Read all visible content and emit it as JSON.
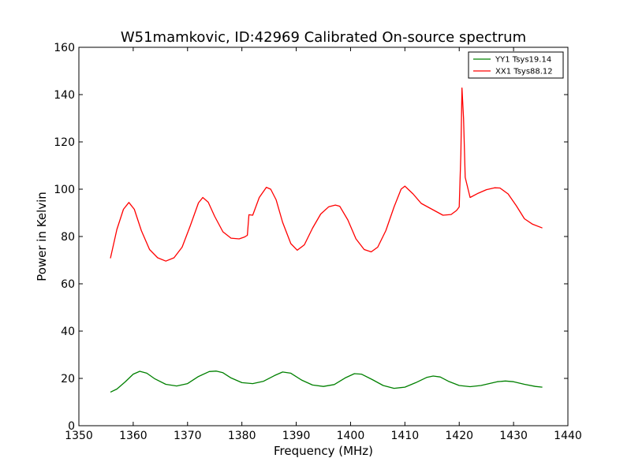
{
  "chart_data": {
    "type": "line",
    "title": "W51mamkovic, ID:42969 Calibrated On-source spectrum",
    "xlabel": "Frequency (MHz)",
    "ylabel": "Power in Kelvin",
    "xlim": [
      1350,
      1440
    ],
    "ylim": [
      0,
      160
    ],
    "xticks": [
      1350,
      1360,
      1370,
      1380,
      1390,
      1400,
      1410,
      1420,
      1430,
      1440
    ],
    "yticks": [
      0,
      20,
      40,
      60,
      80,
      100,
      120,
      140,
      160
    ],
    "grid": false,
    "legend_position": "top-right",
    "series": [
      {
        "name": "YY1 Tsys19.14",
        "color": "#008000",
        "x": [
          1355.8,
          1357,
          1358.5,
          1360,
          1361.2,
          1362.5,
          1364,
          1366,
          1368,
          1370,
          1372,
          1374,
          1375.3,
          1376.5,
          1378,
          1380,
          1382,
          1384,
          1386,
          1387.5,
          1389,
          1391,
          1393,
          1395,
          1397,
          1399,
          1400.7,
          1402,
          1404,
          1406,
          1408,
          1410,
          1412,
          1414,
          1415.2,
          1416.5,
          1418,
          1420,
          1422,
          1424,
          1425.5,
          1427,
          1428.5,
          1430,
          1432,
          1434,
          1435.3
        ],
        "y": [
          14.2,
          15.5,
          18.5,
          21.8,
          23.0,
          22.2,
          19.8,
          17.5,
          16.8,
          17.8,
          20.8,
          22.9,
          23.1,
          22.4,
          20.2,
          18.2,
          17.8,
          18.8,
          21.2,
          22.7,
          22.2,
          19.3,
          17.2,
          16.6,
          17.4,
          20.2,
          22.0,
          21.8,
          19.5,
          17.0,
          15.8,
          16.3,
          18.2,
          20.4,
          21.0,
          20.6,
          18.8,
          17.0,
          16.5,
          17.0,
          17.8,
          18.6,
          18.9,
          18.6,
          17.5,
          16.6,
          16.3
        ]
      },
      {
        "name": "XX1 Tsys88.12",
        "color": "#ff0000",
        "x": [
          1355.8,
          1357,
          1358.2,
          1359.2,
          1360.2,
          1361.5,
          1363,
          1364.5,
          1366,
          1367.5,
          1369,
          1370.5,
          1372,
          1372.8,
          1373.8,
          1375,
          1376.5,
          1378,
          1379.5,
          1380.5,
          1381,
          1381.3,
          1382,
          1383.2,
          1384.5,
          1385.3,
          1386.3,
          1387.5,
          1389,
          1390.2,
          1391.5,
          1393,
          1394.5,
          1396,
          1397.2,
          1398,
          1399.5,
          1401,
          1402.5,
          1403.8,
          1405,
          1406.5,
          1408,
          1409.3,
          1410,
          1411.5,
          1413,
          1415,
          1417,
          1418.5,
          1419.5,
          1420,
          1420.3,
          1420.5,
          1420.8,
          1421.1,
          1422,
          1423.5,
          1425,
          1426.5,
          1427.5,
          1429,
          1430.5,
          1432,
          1433.5,
          1435.3
        ],
        "y": [
          70.8,
          83.0,
          91.5,
          94.4,
          91.5,
          82.5,
          74.5,
          71.0,
          69.6,
          71.0,
          75.5,
          84.5,
          94.2,
          96.5,
          94.5,
          88.5,
          82.0,
          79.3,
          79.0,
          79.8,
          80.5,
          89.2,
          89.0,
          96.5,
          100.8,
          100.0,
          95.5,
          86.0,
          77.0,
          74.2,
          76.5,
          83.5,
          89.5,
          92.6,
          93.3,
          92.8,
          87.0,
          79.0,
          74.5,
          73.5,
          75.5,
          82.5,
          92.5,
          100.0,
          101.3,
          98.0,
          94.0,
          91.5,
          89.0,
          89.3,
          91.0,
          92.5,
          115.0,
          142.8,
          130.0,
          105.0,
          96.5,
          98.3,
          99.8,
          100.6,
          100.5,
          98.0,
          93.0,
          87.5,
          85.2,
          83.6
        ]
      }
    ]
  }
}
